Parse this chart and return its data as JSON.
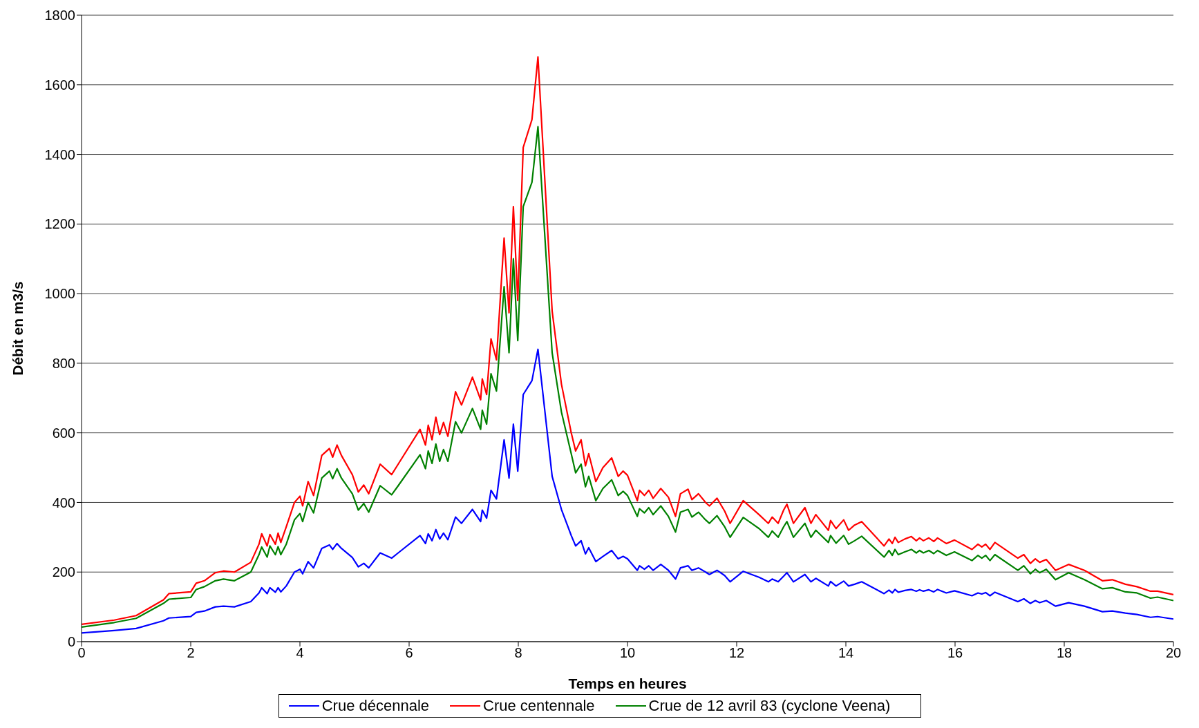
{
  "chart_data": {
    "type": "line",
    "xlabel": "Temps en heures",
    "ylabel": "Débit en m3/s",
    "x": [
      0,
      0.6,
      1,
      1.5,
      1.6,
      2,
      2.1,
      2.25,
      2.45,
      2.6,
      2.8,
      3.1,
      3.25,
      3.3,
      3.4,
      3.45,
      3.55,
      3.6,
      3.65,
      3.75,
      3.9,
      4,
      4.05,
      4.15,
      4.25,
      4.4,
      4.54,
      4.6,
      4.68,
      4.76,
      4.96,
      5.07,
      5.17,
      5.26,
      5.47,
      5.68,
      5.8,
      6.2,
      6.3,
      6.35,
      6.42,
      6.49,
      6.56,
      6.63,
      6.71,
      6.85,
      6.96,
      7.16,
      7.31,
      7.34,
      7.42,
      7.5,
      7.6,
      7.74,
      7.83,
      7.91,
      7.99,
      8.09,
      8.25,
      8.36,
      8.62,
      8.79,
      8.97,
      9.05,
      9.15,
      9.23,
      9.29,
      9.42,
      9.55,
      9.71,
      9.83,
      9.92,
      10,
      10.18,
      10.22,
      10.31,
      10.39,
      10.47,
      10.61,
      10.75,
      10.88,
      10.97,
      11.11,
      11.18,
      11.3,
      11.43,
      11.5,
      11.64,
      11.78,
      11.88,
      12.12,
      12.41,
      12.58,
      12.65,
      12.76,
      12.86,
      12.92,
      13.04,
      13.25,
      13.36,
      13.45,
      13.68,
      13.72,
      13.82,
      13.96,
      14.05,
      14.16,
      14.29,
      14.7,
      14.79,
      14.85,
      14.9,
      14.96,
      15.08,
      15.2,
      15.29,
      15.35,
      15.42,
      15.52,
      15.61,
      15.68,
      15.84,
      15.99,
      16.31,
      16.42,
      16.49,
      16.56,
      16.64,
      16.73,
      17.15,
      17.26,
      17.38,
      17.47,
      17.55,
      17.67,
      17.84,
      18.08,
      18.37,
      18.7,
      18.88,
      19.12,
      19.33,
      19.58,
      19.71,
      20
    ],
    "series": [
      {
        "name": "Crue décennale",
        "color": "#0000ff",
        "values": [
          25,
          32,
          38,
          60,
          68,
          72,
          84,
          88,
          100,
          102,
          100,
          115,
          140,
          155,
          138,
          155,
          142,
          155,
          143,
          160,
          200,
          208,
          195,
          230,
          212,
          268,
          278,
          265,
          282,
          268,
          242,
          215,
          225,
          212,
          255,
          240,
          255,
          305,
          282,
          310,
          290,
          322,
          295,
          312,
          293,
          358,
          340,
          380,
          345,
          378,
          355,
          435,
          410,
          580,
          470,
          625,
          490,
          710,
          750,
          840,
          475,
          380,
          305,
          275,
          290,
          252,
          270,
          230,
          245,
          262,
          238,
          245,
          238,
          205,
          218,
          208,
          218,
          205,
          222,
          205,
          180,
          212,
          218,
          205,
          212,
          200,
          193,
          205,
          190,
          172,
          202,
          185,
          172,
          180,
          172,
          188,
          198,
          172,
          193,
          172,
          182,
          160,
          173,
          160,
          174,
          160,
          165,
          172,
          138,
          148,
          140,
          150,
          142,
          147,
          150,
          145,
          149,
          145,
          149,
          143,
          150,
          140,
          146,
          132,
          140,
          137,
          141,
          132,
          142,
          115,
          123,
          110,
          118,
          112,
          118,
          102,
          112,
          102,
          86,
          88,
          82,
          78,
          70,
          72,
          65
        ]
      },
      {
        "name": "Crue centennale",
        "color": "#ff0000",
        "values": [
          50,
          62,
          75,
          120,
          138,
          143,
          168,
          175,
          198,
          203,
          200,
          228,
          280,
          310,
          275,
          308,
          280,
          312,
          285,
          330,
          400,
          418,
          390,
          460,
          420,
          535,
          555,
          530,
          565,
          535,
          480,
          430,
          450,
          425,
          510,
          480,
          510,
          610,
          565,
          622,
          580,
          645,
          595,
          630,
          590,
          718,
          680,
          760,
          695,
          755,
          710,
          870,
          810,
          1160,
          945,
          1250,
          980,
          1420,
          1500,
          1680,
          950,
          740,
          600,
          548,
          580,
          505,
          540,
          460,
          500,
          528,
          475,
          490,
          478,
          405,
          435,
          420,
          435,
          412,
          440,
          415,
          360,
          425,
          438,
          408,
          425,
          400,
          390,
          412,
          375,
          340,
          405,
          365,
          340,
          358,
          340,
          378,
          395,
          340,
          385,
          340,
          365,
          320,
          348,
          325,
          350,
          320,
          335,
          345,
          275,
          295,
          282,
          300,
          285,
          295,
          302,
          290,
          298,
          290,
          298,
          288,
          298,
          282,
          292,
          265,
          280,
          272,
          280,
          265,
          285,
          240,
          250,
          225,
          238,
          228,
          236,
          205,
          222,
          205,
          175,
          178,
          165,
          158,
          145,
          145,
          135
        ]
      },
      {
        "name": "Crue de 12 avril 83 (cyclone Veena)",
        "color": "#008000",
        "values": [
          42,
          55,
          67,
          110,
          122,
          127,
          150,
          158,
          175,
          180,
          175,
          200,
          250,
          272,
          243,
          275,
          250,
          273,
          250,
          280,
          350,
          368,
          345,
          400,
          370,
          470,
          490,
          468,
          497,
          470,
          425,
          378,
          397,
          372,
          448,
          422,
          448,
          537,
          497,
          548,
          512,
          568,
          518,
          552,
          518,
          632,
          600,
          670,
          610,
          665,
          625,
          770,
          720,
          1020,
          830,
          1100,
          865,
          1250,
          1320,
          1480,
          830,
          660,
          540,
          485,
          510,
          445,
          475,
          405,
          440,
          465,
          420,
          432,
          420,
          360,
          382,
          370,
          385,
          365,
          390,
          360,
          315,
          372,
          380,
          358,
          372,
          350,
          340,
          362,
          330,
          300,
          357,
          325,
          300,
          318,
          300,
          330,
          345,
          300,
          340,
          300,
          320,
          285,
          305,
          283,
          305,
          280,
          290,
          303,
          243,
          262,
          248,
          265,
          250,
          258,
          265,
          255,
          262,
          255,
          262,
          253,
          262,
          248,
          258,
          233,
          248,
          240,
          248,
          233,
          250,
          205,
          218,
          195,
          208,
          198,
          208,
          178,
          198,
          178,
          152,
          155,
          143,
          140,
          125,
          128,
          118
        ]
      }
    ],
    "xlim": [
      0,
      20
    ],
    "xticks": [
      0,
      2,
      4,
      6,
      8,
      10,
      12,
      14,
      16,
      18,
      20
    ],
    "ylim": [
      0,
      1800
    ],
    "yticks": [
      0,
      200,
      400,
      600,
      800,
      1000,
      1200,
      1400,
      1600,
      1800
    ],
    "grid": "y",
    "legend": "bottom",
    "marker": "none",
    "line_style": "solid"
  }
}
